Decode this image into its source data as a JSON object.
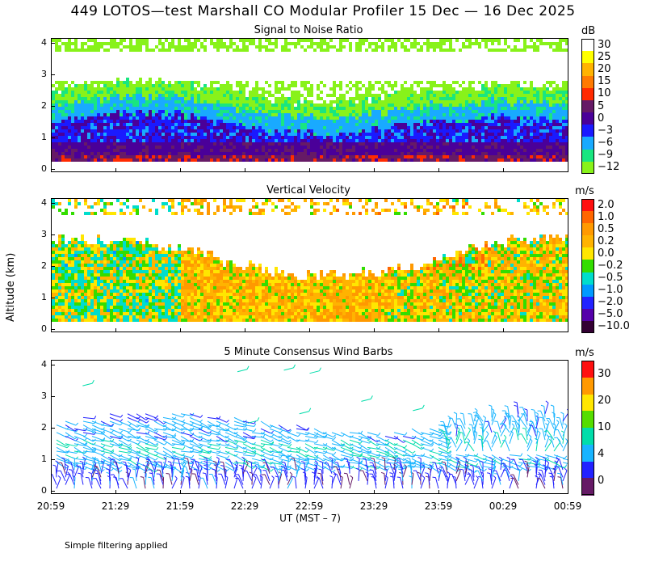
{
  "page": {
    "title": "449 LOTOS—test Marshall CO Modular Profiler 15 Dec — 16 Dec 2025",
    "y_axis_label": "Altitude (km)",
    "x_axis_label": "UT  (MST – 7)",
    "footer": "Simple filtering applied"
  },
  "x_ticks": [
    "20:59",
    "21:29",
    "21:59",
    "22:29",
    "22:59",
    "23:29",
    "23:59",
    "00:29",
    "00:59"
  ],
  "y_ticks": [
    "0",
    "1",
    "2",
    "3",
    "4"
  ],
  "panels": [
    {
      "title": "Signal to Noise Ratio",
      "unit": "dB",
      "colorbar": {
        "labels": [
          "30",
          "25",
          "20",
          "15",
          "10",
          "5",
          "0",
          "−3",
          "−6",
          "−9",
          "−12"
        ],
        "colors": [
          "#ffffff",
          "#ffff00",
          "#ffb300",
          "#ff7a00",
          "#ff2a00",
          "#661a66",
          "#4a0099",
          "#1a1aff",
          "#19aaff",
          "#19e680",
          "#88f21a"
        ]
      }
    },
    {
      "title": "Vertical Velocity",
      "unit": "m/s",
      "colorbar": {
        "labels": [
          "2.0",
          "1.0",
          "0.5",
          "0.2",
          "0.0",
          "−0.2",
          "−0.5",
          "−1.0",
          "−2.0",
          "−5.0",
          "−10.0"
        ],
        "colors": [
          "#ff1010",
          "#ff6600",
          "#ff9900",
          "#ffb300",
          "#ffe600",
          "#33dd00",
          "#00ddcc",
          "#0099ff",
          "#2222ff",
          "#5500aa",
          "#330033"
        ]
      }
    },
    {
      "title": "5 Minute Consensus Wind Barbs",
      "unit": "m/s",
      "colorbar": {
        "labels": [
          "30",
          "20",
          "10",
          "4",
          "0"
        ],
        "colors": [
          "#ff1010",
          "#ff9900",
          "#ffe600",
          "#55dd00",
          "#00ddaa",
          "#18b4ff",
          "#2222ff",
          "#661a66"
        ]
      }
    }
  ],
  "chart_data": [
    {
      "type": "heatmap",
      "title": "Signal to Noise Ratio",
      "units": "dB",
      "x_range": [
        "20:59",
        "00:59"
      ],
      "ylim": [
        0,
        4
      ],
      "ylabel": "Altitude (km)",
      "profile_layers": [
        {
          "altitude_km": [
            0.3,
            0.5
          ],
          "snr_dB": 10
        },
        {
          "altitude_km": [
            0.5,
            0.9
          ],
          "snr_dB": 3
        },
        {
          "altitude_km": [
            0.9,
            1.5
          ],
          "snr_dB": -3
        },
        {
          "altitude_km": [
            1.5,
            2.1
          ],
          "snr_dB": -6
        },
        {
          "altitude_km": [
            2.1,
            2.6
          ],
          "snr_dB": -10
        },
        {
          "altitude_km": [
            2.6,
            4.0
          ],
          "snr_dB": -12
        }
      ]
    },
    {
      "type": "heatmap",
      "title": "Vertical Velocity",
      "units": "m/s",
      "x_range": [
        "20:59",
        "00:59"
      ],
      "ylim": [
        0,
        4
      ],
      "ylabel": "Altitude (km)",
      "typical_range_m_s": [
        -0.5,
        1.0
      ]
    },
    {
      "type": "scatter",
      "title": "5 Minute Consensus Wind Barbs",
      "units": "m/s",
      "x_range": [
        "20:59",
        "00:59"
      ],
      "ylim": [
        0,
        4
      ],
      "ylabel": "Altitude (km)",
      "typical_speed_by_altitude": [
        {
          "altitude_km": 0.5,
          "speed_m_s": 3
        },
        {
          "altitude_km": 1.0,
          "speed_m_s": 6
        },
        {
          "altitude_km": 1.5,
          "speed_m_s": 7
        },
        {
          "altitude_km": 2.0,
          "speed_m_s": 5
        },
        {
          "altitude_km": 2.7,
          "speed_m_s": 4
        },
        {
          "altitude_km": 3.8,
          "speed_m_s": 8
        }
      ]
    }
  ]
}
